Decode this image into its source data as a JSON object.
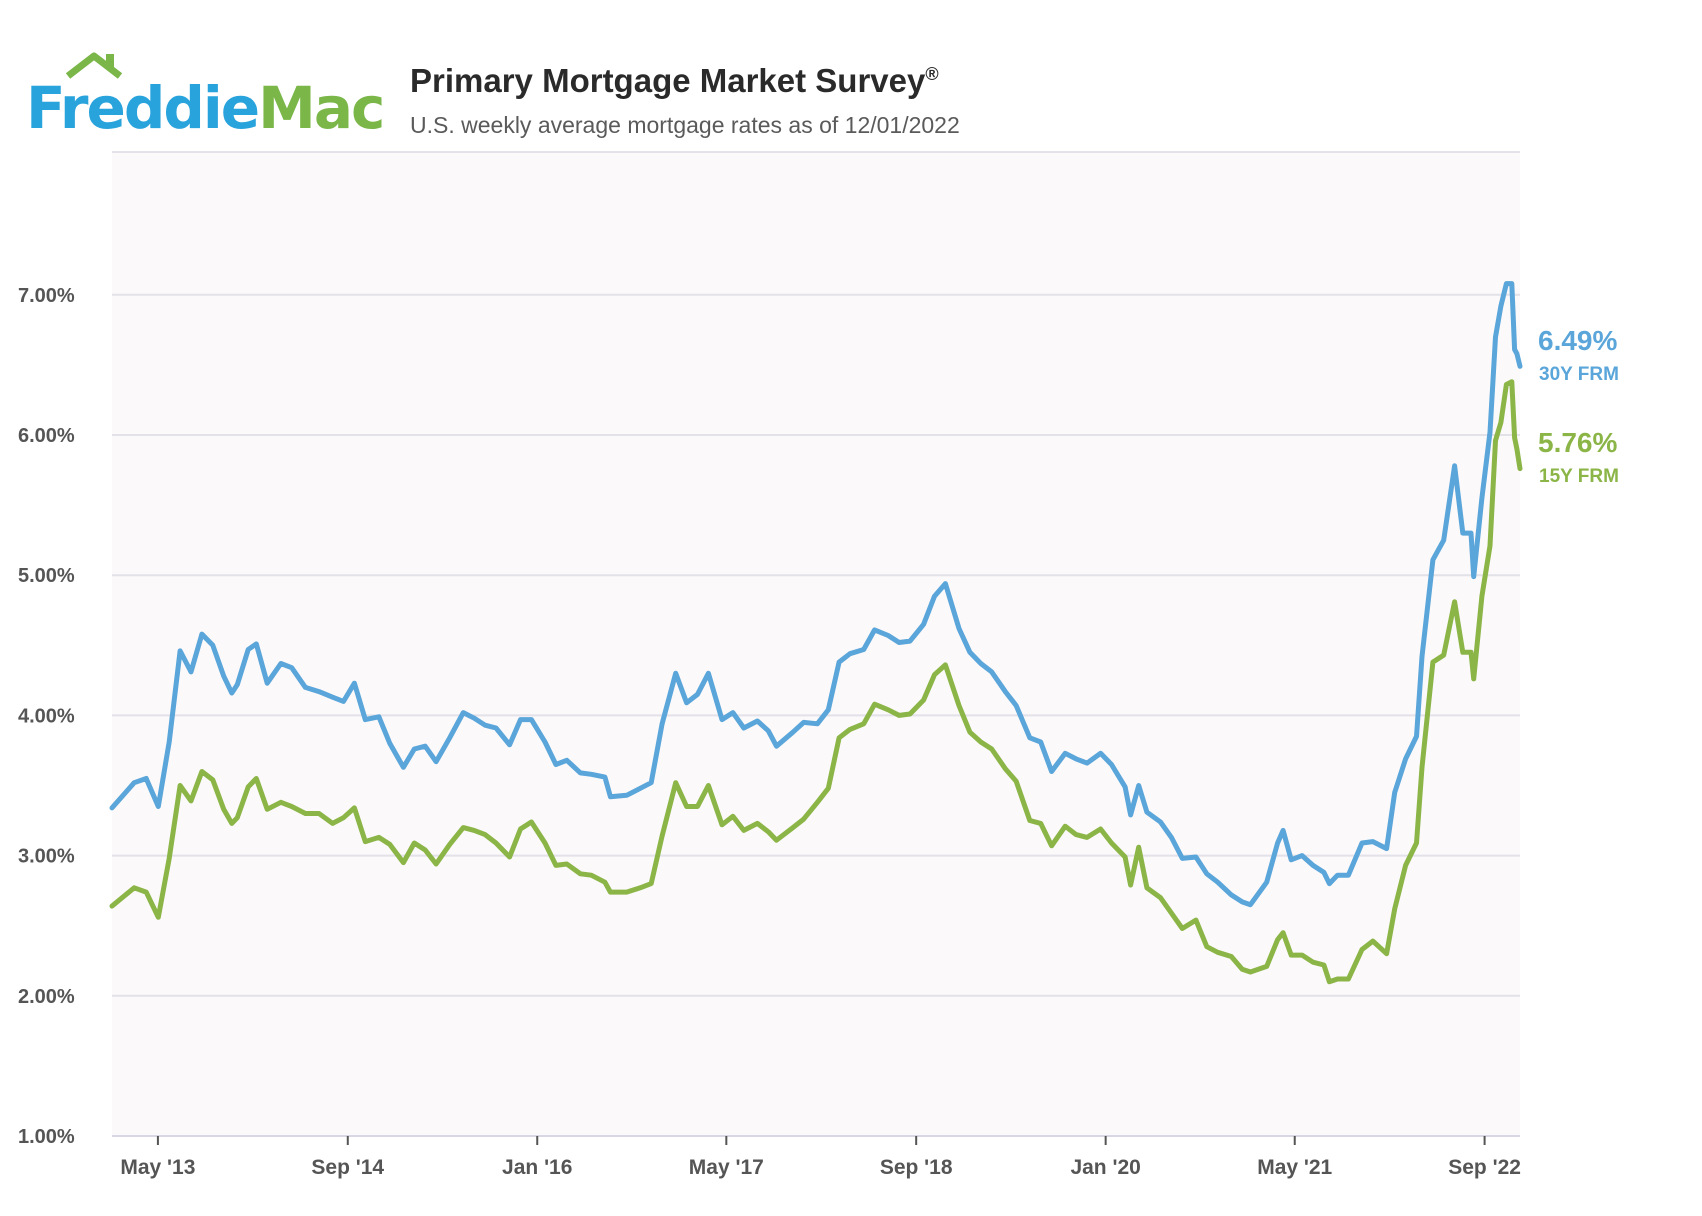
{
  "header": {
    "logo_part1": "Freddie",
    "logo_part2": "Mac",
    "title": "Primary Mortgage Market Survey",
    "title_mark": "®",
    "subtitle": "U.S. weekly average mortgage rates as of 12/01/2022"
  },
  "colors": {
    "blue": "#5aa5d9",
    "green": "#8bb547",
    "grid": "#e2e2e8",
    "plot_bg": "#fcf9fa",
    "logo_blue": "#29a3dc",
    "logo_green": "#7ab648"
  },
  "chart_data": {
    "type": "line",
    "title": "Primary Mortgage Market Survey®",
    "subtitle": "U.S. weekly average mortgage rates as of 12/01/2022",
    "ylim": [
      1.0,
      8.0
    ],
    "y_ticks": [
      {
        "value": 7,
        "label": "7.00%"
      },
      {
        "value": 6,
        "label": "6.00%"
      },
      {
        "value": 5,
        "label": "5.00%"
      },
      {
        "value": 4,
        "label": "4.00%"
      },
      {
        "value": 3,
        "label": "3.00%"
      },
      {
        "value": 2,
        "label": "2.00%"
      },
      {
        "value": 1,
        "label": "1.00%"
      }
    ],
    "xlim": [
      "2013-01-03",
      "2022-12-01"
    ],
    "x_ticks": [
      {
        "date": "2013-05-01",
        "label": "May '13"
      },
      {
        "date": "2014-09-01",
        "label": "Sep '14"
      },
      {
        "date": "2016-01-01",
        "label": "Jan '16"
      },
      {
        "date": "2017-05-01",
        "label": "May '17"
      },
      {
        "date": "2018-09-01",
        "label": "Sep '18"
      },
      {
        "date": "2020-01-01",
        "label": "Jan '20"
      },
      {
        "date": "2021-05-01",
        "label": "May '21"
      },
      {
        "date": "2022-09-01",
        "label": "Sep '22"
      }
    ],
    "grid": true,
    "series": [
      {
        "name": "30Y FRM",
        "end_label": "6.49%",
        "color": "#5aa5d9",
        "points": [
          [
            "2013-01-03",
            3.34
          ],
          [
            "2013-03-01",
            3.52
          ],
          [
            "2013-04-01",
            3.55
          ],
          [
            "2013-05-02",
            3.35
          ],
          [
            "2013-05-30",
            3.81
          ],
          [
            "2013-06-27",
            4.46
          ],
          [
            "2013-07-25",
            4.31
          ],
          [
            "2013-08-22",
            4.58
          ],
          [
            "2013-09-19",
            4.5
          ],
          [
            "2013-10-17",
            4.28
          ],
          [
            "2013-11-07",
            4.16
          ],
          [
            "2013-11-21",
            4.22
          ],
          [
            "2013-12-19",
            4.47
          ],
          [
            "2014-01-09",
            4.51
          ],
          [
            "2014-02-06",
            4.23
          ],
          [
            "2014-03-13",
            4.37
          ],
          [
            "2014-04-10",
            4.34
          ],
          [
            "2014-05-15",
            4.2
          ],
          [
            "2014-06-19",
            4.17
          ],
          [
            "2014-07-24",
            4.13
          ],
          [
            "2014-08-21",
            4.1
          ],
          [
            "2014-09-18",
            4.23
          ],
          [
            "2014-10-16",
            3.97
          ],
          [
            "2014-11-20",
            3.99
          ],
          [
            "2014-12-18",
            3.8
          ],
          [
            "2015-01-22",
            3.63
          ],
          [
            "2015-02-19",
            3.76
          ],
          [
            "2015-03-19",
            3.78
          ],
          [
            "2015-04-16",
            3.67
          ],
          [
            "2015-05-21",
            3.84
          ],
          [
            "2015-06-25",
            4.02
          ],
          [
            "2015-07-23",
            3.98
          ],
          [
            "2015-08-20",
            3.93
          ],
          [
            "2015-09-17",
            3.91
          ],
          [
            "2015-10-22",
            3.79
          ],
          [
            "2015-11-19",
            3.97
          ],
          [
            "2015-12-17",
            3.97
          ],
          [
            "2016-01-21",
            3.81
          ],
          [
            "2016-02-18",
            3.65
          ],
          [
            "2016-03-17",
            3.68
          ],
          [
            "2016-04-21",
            3.59
          ],
          [
            "2016-05-19",
            3.58
          ],
          [
            "2016-06-23",
            3.56
          ],
          [
            "2016-07-07",
            3.42
          ],
          [
            "2016-08-18",
            3.43
          ],
          [
            "2016-09-22",
            3.48
          ],
          [
            "2016-10-20",
            3.52
          ],
          [
            "2016-11-17",
            3.94
          ],
          [
            "2016-12-22",
            4.3
          ],
          [
            "2017-01-19",
            4.09
          ],
          [
            "2017-02-16",
            4.15
          ],
          [
            "2017-03-16",
            4.3
          ],
          [
            "2017-04-20",
            3.97
          ],
          [
            "2017-05-18",
            4.02
          ],
          [
            "2017-06-15",
            3.91
          ],
          [
            "2017-07-20",
            3.96
          ],
          [
            "2017-08-17",
            3.89
          ],
          [
            "2017-09-07",
            3.78
          ],
          [
            "2017-10-19",
            3.88
          ],
          [
            "2017-11-16",
            3.95
          ],
          [
            "2017-12-21",
            3.94
          ],
          [
            "2018-01-18",
            4.04
          ],
          [
            "2018-02-15",
            4.38
          ],
          [
            "2018-03-15",
            4.44
          ],
          [
            "2018-04-19",
            4.47
          ],
          [
            "2018-05-17",
            4.61
          ],
          [
            "2018-06-21",
            4.57
          ],
          [
            "2018-07-19",
            4.52
          ],
          [
            "2018-08-16",
            4.53
          ],
          [
            "2018-09-20",
            4.65
          ],
          [
            "2018-10-18",
            4.85
          ],
          [
            "2018-11-15",
            4.94
          ],
          [
            "2018-12-20",
            4.62
          ],
          [
            "2019-01-17",
            4.45
          ],
          [
            "2019-02-14",
            4.37
          ],
          [
            "2019-03-14",
            4.31
          ],
          [
            "2019-04-18",
            4.17
          ],
          [
            "2019-05-16",
            4.07
          ],
          [
            "2019-06-20",
            3.84
          ],
          [
            "2019-07-18",
            3.81
          ],
          [
            "2019-08-15",
            3.6
          ],
          [
            "2019-09-19",
            3.73
          ],
          [
            "2019-10-17",
            3.69
          ],
          [
            "2019-11-14",
            3.66
          ],
          [
            "2019-12-19",
            3.73
          ],
          [
            "2020-01-16",
            3.65
          ],
          [
            "2020-02-20",
            3.49
          ],
          [
            "2020-03-05",
            3.29
          ],
          [
            "2020-03-26",
            3.5
          ],
          [
            "2020-04-16",
            3.31
          ],
          [
            "2020-05-21",
            3.24
          ],
          [
            "2020-06-18",
            3.13
          ],
          [
            "2020-07-16",
            2.98
          ],
          [
            "2020-08-20",
            2.99
          ],
          [
            "2020-09-17",
            2.87
          ],
          [
            "2020-10-15",
            2.81
          ],
          [
            "2020-11-19",
            2.72
          ],
          [
            "2020-12-17",
            2.67
          ],
          [
            "2021-01-07",
            2.65
          ],
          [
            "2021-02-18",
            2.81
          ],
          [
            "2021-03-18",
            3.09
          ],
          [
            "2021-04-01",
            3.18
          ],
          [
            "2021-04-22",
            2.97
          ],
          [
            "2021-05-20",
            3.0
          ],
          [
            "2021-06-17",
            2.93
          ],
          [
            "2021-07-15",
            2.88
          ],
          [
            "2021-07-29",
            2.8
          ],
          [
            "2021-08-19",
            2.86
          ],
          [
            "2021-09-16",
            2.86
          ],
          [
            "2021-10-21",
            3.09
          ],
          [
            "2021-11-18",
            3.1
          ],
          [
            "2021-12-23",
            3.05
          ],
          [
            "2022-01-13",
            3.45
          ],
          [
            "2022-02-10",
            3.69
          ],
          [
            "2022-03-10",
            3.85
          ],
          [
            "2022-03-24",
            4.42
          ],
          [
            "2022-04-21",
            5.11
          ],
          [
            "2022-05-19",
            5.25
          ],
          [
            "2022-06-16",
            5.78
          ],
          [
            "2022-07-07",
            5.3
          ],
          [
            "2022-07-28",
            5.3
          ],
          [
            "2022-08-04",
            4.99
          ],
          [
            "2022-08-25",
            5.55
          ],
          [
            "2022-09-15",
            6.02
          ],
          [
            "2022-09-29",
            6.7
          ],
          [
            "2022-10-13",
            6.92
          ],
          [
            "2022-10-27",
            7.08
          ],
          [
            "2022-11-10",
            7.08
          ],
          [
            "2022-11-17",
            6.61
          ],
          [
            "2022-11-23",
            6.58
          ],
          [
            "2022-12-01",
            6.49
          ]
        ]
      },
      {
        "name": "15Y FRM",
        "end_label": "5.76%",
        "color": "#8bb547",
        "points": [
          [
            "2013-01-03",
            2.64
          ],
          [
            "2013-03-01",
            2.77
          ],
          [
            "2013-04-01",
            2.74
          ],
          [
            "2013-05-02",
            2.56
          ],
          [
            "2013-05-30",
            2.98
          ],
          [
            "2013-06-27",
            3.5
          ],
          [
            "2013-07-25",
            3.39
          ],
          [
            "2013-08-22",
            3.6
          ],
          [
            "2013-09-19",
            3.54
          ],
          [
            "2013-10-17",
            3.33
          ],
          [
            "2013-11-07",
            3.23
          ],
          [
            "2013-11-21",
            3.27
          ],
          [
            "2013-12-19",
            3.49
          ],
          [
            "2014-01-09",
            3.55
          ],
          [
            "2014-02-06",
            3.33
          ],
          [
            "2014-03-13",
            3.38
          ],
          [
            "2014-04-10",
            3.35
          ],
          [
            "2014-05-15",
            3.3
          ],
          [
            "2014-06-19",
            3.3
          ],
          [
            "2014-07-24",
            3.23
          ],
          [
            "2014-08-21",
            3.27
          ],
          [
            "2014-09-18",
            3.34
          ],
          [
            "2014-10-16",
            3.1
          ],
          [
            "2014-11-20",
            3.13
          ],
          [
            "2014-12-18",
            3.08
          ],
          [
            "2015-01-22",
            2.95
          ],
          [
            "2015-02-19",
            3.09
          ],
          [
            "2015-03-19",
            3.04
          ],
          [
            "2015-04-16",
            2.94
          ],
          [
            "2015-05-21",
            3.08
          ],
          [
            "2015-06-25",
            3.2
          ],
          [
            "2015-07-23",
            3.18
          ],
          [
            "2015-08-20",
            3.15
          ],
          [
            "2015-09-17",
            3.09
          ],
          [
            "2015-10-22",
            2.99
          ],
          [
            "2015-11-19",
            3.19
          ],
          [
            "2015-12-17",
            3.24
          ],
          [
            "2016-01-21",
            3.09
          ],
          [
            "2016-02-18",
            2.93
          ],
          [
            "2016-03-17",
            2.94
          ],
          [
            "2016-04-21",
            2.87
          ],
          [
            "2016-05-19",
            2.86
          ],
          [
            "2016-06-23",
            2.81
          ],
          [
            "2016-07-07",
            2.74
          ],
          [
            "2016-08-18",
            2.74
          ],
          [
            "2016-09-22",
            2.77
          ],
          [
            "2016-10-20",
            2.8
          ],
          [
            "2016-11-17",
            3.14
          ],
          [
            "2016-12-22",
            3.52
          ],
          [
            "2017-01-19",
            3.35
          ],
          [
            "2017-02-16",
            3.35
          ],
          [
            "2017-03-16",
            3.5
          ],
          [
            "2017-04-20",
            3.22
          ],
          [
            "2017-05-18",
            3.28
          ],
          [
            "2017-06-15",
            3.18
          ],
          [
            "2017-07-20",
            3.23
          ],
          [
            "2017-08-17",
            3.17
          ],
          [
            "2017-09-07",
            3.11
          ],
          [
            "2017-10-19",
            3.2
          ],
          [
            "2017-11-16",
            3.26
          ],
          [
            "2017-12-21",
            3.38
          ],
          [
            "2018-01-18",
            3.48
          ],
          [
            "2018-02-15",
            3.84
          ],
          [
            "2018-03-15",
            3.9
          ],
          [
            "2018-04-19",
            3.94
          ],
          [
            "2018-05-17",
            4.08
          ],
          [
            "2018-06-21",
            4.04
          ],
          [
            "2018-07-19",
            4.0
          ],
          [
            "2018-08-16",
            4.01
          ],
          [
            "2018-09-20",
            4.11
          ],
          [
            "2018-10-18",
            4.29
          ],
          [
            "2018-11-15",
            4.36
          ],
          [
            "2018-12-20",
            4.07
          ],
          [
            "2019-01-17",
            3.88
          ],
          [
            "2019-02-14",
            3.81
          ],
          [
            "2019-03-14",
            3.76
          ],
          [
            "2019-04-18",
            3.62
          ],
          [
            "2019-05-16",
            3.53
          ],
          [
            "2019-06-20",
            3.25
          ],
          [
            "2019-07-18",
            3.23
          ],
          [
            "2019-08-15",
            3.07
          ],
          [
            "2019-09-19",
            3.21
          ],
          [
            "2019-10-17",
            3.15
          ],
          [
            "2019-11-14",
            3.13
          ],
          [
            "2019-12-19",
            3.19
          ],
          [
            "2020-01-16",
            3.09
          ],
          [
            "2020-02-20",
            2.99
          ],
          [
            "2020-03-05",
            2.79
          ],
          [
            "2020-03-26",
            3.06
          ],
          [
            "2020-04-16",
            2.77
          ],
          [
            "2020-05-21",
            2.7
          ],
          [
            "2020-06-18",
            2.59
          ],
          [
            "2020-07-16",
            2.48
          ],
          [
            "2020-08-20",
            2.54
          ],
          [
            "2020-09-17",
            2.35
          ],
          [
            "2020-10-15",
            2.31
          ],
          [
            "2020-11-19",
            2.28
          ],
          [
            "2020-12-17",
            2.19
          ],
          [
            "2021-01-07",
            2.17
          ],
          [
            "2021-02-18",
            2.21
          ],
          [
            "2021-03-18",
            2.4
          ],
          [
            "2021-04-01",
            2.45
          ],
          [
            "2021-04-22",
            2.29
          ],
          [
            "2021-05-20",
            2.29
          ],
          [
            "2021-06-17",
            2.24
          ],
          [
            "2021-07-15",
            2.22
          ],
          [
            "2021-07-29",
            2.1
          ],
          [
            "2021-08-19",
            2.12
          ],
          [
            "2021-09-16",
            2.12
          ],
          [
            "2021-10-21",
            2.33
          ],
          [
            "2021-11-18",
            2.39
          ],
          [
            "2021-12-23",
            2.3
          ],
          [
            "2022-01-13",
            2.62
          ],
          [
            "2022-02-10",
            2.93
          ],
          [
            "2022-03-10",
            3.09
          ],
          [
            "2022-03-24",
            3.63
          ],
          [
            "2022-04-21",
            4.38
          ],
          [
            "2022-05-19",
            4.43
          ],
          [
            "2022-06-16",
            4.81
          ],
          [
            "2022-07-07",
            4.45
          ],
          [
            "2022-07-28",
            4.45
          ],
          [
            "2022-08-04",
            4.26
          ],
          [
            "2022-08-25",
            4.85
          ],
          [
            "2022-09-15",
            5.21
          ],
          [
            "2022-09-29",
            5.96
          ],
          [
            "2022-10-13",
            6.09
          ],
          [
            "2022-10-27",
            6.36
          ],
          [
            "2022-11-10",
            6.38
          ],
          [
            "2022-11-17",
            5.98
          ],
          [
            "2022-11-23",
            5.9
          ],
          [
            "2022-12-01",
            5.76
          ]
        ]
      }
    ]
  }
}
